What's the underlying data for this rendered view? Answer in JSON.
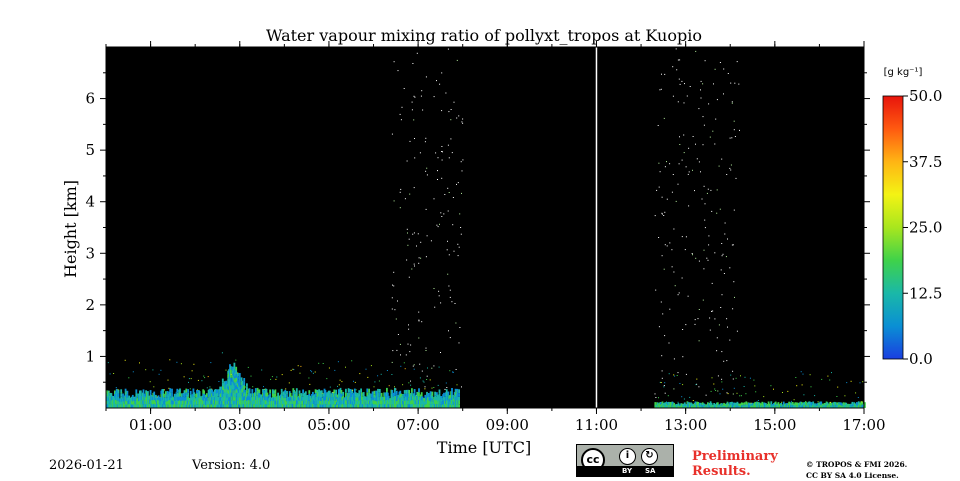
{
  "chart_data": {
    "type": "heatmap",
    "title": "Water vapour mixing ratio of pollyxt_tropos at Kuopio",
    "xlabel": "Time [UTC]",
    "ylabel": "Height [km]",
    "x_range_hours": [
      0,
      17
    ],
    "y_range_km": [
      0,
      7
    ],
    "x_ticks": [
      {
        "hour": 1,
        "label": "01:00"
      },
      {
        "hour": 3,
        "label": "03:00"
      },
      {
        "hour": 5,
        "label": "05:00"
      },
      {
        "hour": 7,
        "label": "07:00"
      },
      {
        "hour": 9,
        "label": "09:00"
      },
      {
        "hour": 11,
        "label": "11:00"
      },
      {
        "hour": 13,
        "label": "13:00"
      },
      {
        "hour": 15,
        "label": "15:00"
      },
      {
        "hour": 17,
        "label": "17:00"
      }
    ],
    "y_ticks": [
      {
        "km": 1,
        "label": "1"
      },
      {
        "km": 2,
        "label": "2"
      },
      {
        "km": 3,
        "label": "3"
      },
      {
        "km": 4,
        "label": "4"
      },
      {
        "km": 5,
        "label": "5"
      },
      {
        "km": 6,
        "label": "6"
      }
    ],
    "colorbar": {
      "unit_label": "[g kg⁻¹]",
      "range": [
        0,
        50
      ],
      "ticks": [
        {
          "value": 0,
          "label": "0.0"
        },
        {
          "value": 12.5,
          "label": "12.5"
        },
        {
          "value": 25,
          "label": "25.0"
        },
        {
          "value": 37.5,
          "label": "37.5"
        },
        {
          "value": 50,
          "label": "50.0"
        }
      ],
      "colors": [
        "#1a3ee0",
        "#0a8fd4",
        "#1ab8a8",
        "#3fd24a",
        "#a8e61e",
        "#f3f314",
        "#ffb514",
        "#ff5a10",
        "#e8140c"
      ]
    },
    "background_color": "#000000",
    "marker_line_hour": 11,
    "data_segments": [
      {
        "start_hour": 0.0,
        "end_hour": 7.9,
        "boundary_layer_top_km": 0.3,
        "peak_hour": 2.85,
        "peak_top_km": 1.0,
        "typical_value": 10
      },
      {
        "start_hour": 12.3,
        "end_hour": 17.0,
        "boundary_layer_top_km": 0.1,
        "typical_value": 10
      }
    ],
    "noise_columns": [
      {
        "start_hour": 6.4,
        "end_hour": 8.0,
        "top_km": 7.0
      },
      {
        "start_hour": 12.3,
        "end_hour": 14.2,
        "top_km": 7.0
      }
    ]
  },
  "footer": {
    "date": "2026-01-21",
    "version": "Version: 4.0",
    "cc_text": "cc",
    "cc_by": "BY",
    "cc_sa": "SA",
    "preliminary_line1": "Preliminary",
    "preliminary_line2": "Results.",
    "copyright_line1": "© TROPOS & FMI 2026.",
    "copyright_line2": "CC BY SA 4.0 License."
  },
  "colors": {
    "preliminary_text": "#e8302a",
    "marker_line": "#ffffff"
  }
}
